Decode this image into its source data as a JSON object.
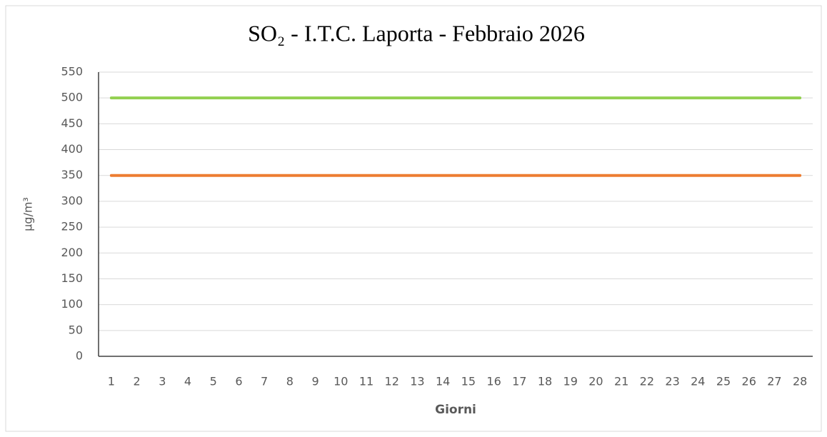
{
  "chart_data": {
    "type": "line",
    "title": "SO₂ - I.T.C. Laporta - Febbraio 2026",
    "x_label": "Giorni",
    "y_label": "µg/m³",
    "categories": [
      1,
      2,
      3,
      4,
      5,
      6,
      7,
      8,
      9,
      10,
      11,
      12,
      13,
      14,
      15,
      16,
      17,
      18,
      19,
      20,
      21,
      22,
      23,
      24,
      25,
      26,
      27,
      28
    ],
    "series": [
      {
        "color": "#92d050",
        "values": [
          500,
          500,
          500,
          500,
          500,
          500,
          500,
          500,
          500,
          500,
          500,
          500,
          500,
          500,
          500,
          500,
          500,
          500,
          500,
          500,
          500,
          500,
          500,
          500,
          500,
          500,
          500,
          500
        ]
      },
      {
        "color": "#ed7d31",
        "values": [
          350,
          350,
          350,
          350,
          350,
          350,
          350,
          350,
          350,
          350,
          350,
          350,
          350,
          350,
          350,
          350,
          350,
          350,
          350,
          350,
          350,
          350,
          350,
          350,
          350,
          350,
          350,
          350
        ]
      }
    ],
    "ylim": [
      0,
      550
    ],
    "yticks": [
      0,
      50,
      100,
      150,
      200,
      250,
      300,
      350,
      400,
      450,
      500,
      550
    ],
    "grid": true
  }
}
